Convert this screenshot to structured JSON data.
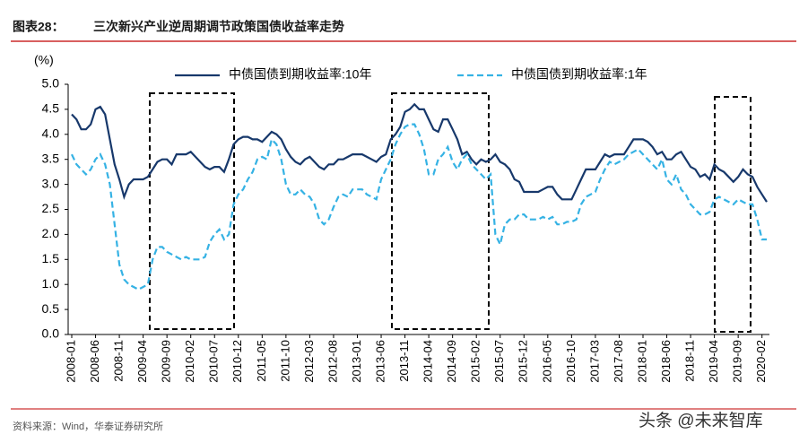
{
  "chart_data": {
    "type": "line",
    "figure_number": "图表28：",
    "title": "三次新兴产业逆周期调节政策国债收益率走势",
    "y_label": "(%)",
    "source": "资料来源：Wind，华泰证券研究所",
    "watermark": "头条 @未来智库",
    "categories": [
      "2008-01",
      null,
      null,
      null,
      null,
      "2008-06",
      null,
      null,
      null,
      null,
      "2008-11",
      null,
      null,
      null,
      null,
      "2009-04",
      null,
      null,
      null,
      null,
      "2009-09",
      null,
      null,
      null,
      null,
      "2010-02",
      null,
      null,
      null,
      null,
      "2010-07",
      null,
      null,
      null,
      null,
      "2010-12",
      null,
      null,
      null,
      null,
      "2011-05",
      null,
      null,
      null,
      null,
      "2011-10",
      null,
      null,
      null,
      null,
      "2012-03",
      null,
      null,
      null,
      null,
      "2012-08",
      null,
      null,
      null,
      null,
      "2013-01",
      null,
      null,
      null,
      null,
      "2013-06",
      null,
      null,
      null,
      null,
      "2013-11",
      null,
      null,
      null,
      null,
      "2014-04",
      null,
      null,
      null,
      null,
      "2014-09",
      null,
      null,
      null,
      null,
      "2015-02",
      null,
      null,
      null,
      null,
      "2015-07",
      null,
      null,
      null,
      null,
      "2015-12",
      null,
      null,
      null,
      null,
      "2016-05",
      null,
      null,
      null,
      null,
      "2016-10",
      null,
      null,
      null,
      null,
      "2017-03",
      null,
      null,
      null,
      null,
      "2017-08",
      null,
      null,
      null,
      null,
      "2018-01",
      null,
      null,
      null,
      null,
      "2018-06",
      null,
      null,
      null,
      null,
      "2018-11",
      null,
      null,
      null,
      null,
      "2019-04",
      null,
      null,
      null,
      null,
      "2019-09",
      null,
      null,
      null,
      null,
      "2020-02",
      null
    ],
    "series": [
      {
        "name": "中债国债到期收益率:10年",
        "color": "#17386b",
        "dash": false,
        "values": [
          4.4,
          4.3,
          4.1,
          4.1,
          4.2,
          4.5,
          4.55,
          4.4,
          3.9,
          3.4,
          3.1,
          2.75,
          3.0,
          3.1,
          3.1,
          3.1,
          3.15,
          3.3,
          3.45,
          3.5,
          3.5,
          3.4,
          3.6,
          3.6,
          3.6,
          3.65,
          3.55,
          3.45,
          3.35,
          3.3,
          3.35,
          3.35,
          3.25,
          3.5,
          3.8,
          3.9,
          3.95,
          3.95,
          3.9,
          3.9,
          3.85,
          3.95,
          4.05,
          4.0,
          3.9,
          3.7,
          3.55,
          3.45,
          3.4,
          3.5,
          3.55,
          3.45,
          3.35,
          3.3,
          3.4,
          3.4,
          3.5,
          3.5,
          3.55,
          3.6,
          3.6,
          3.6,
          3.55,
          3.5,
          3.45,
          3.55,
          3.6,
          3.9,
          4.0,
          4.15,
          4.45,
          4.5,
          4.6,
          4.5,
          4.5,
          4.3,
          4.1,
          4.05,
          4.3,
          4.3,
          4.1,
          3.9,
          3.6,
          3.65,
          3.5,
          3.4,
          3.5,
          3.45,
          3.5,
          3.6,
          3.45,
          3.4,
          3.3,
          3.1,
          3.05,
          2.85,
          2.85,
          2.85,
          2.85,
          2.9,
          2.95,
          2.95,
          2.8,
          2.7,
          2.7,
          2.7,
          2.9,
          3.1,
          3.3,
          3.3,
          3.3,
          3.45,
          3.6,
          3.55,
          3.6,
          3.6,
          3.6,
          3.75,
          3.9,
          3.9,
          3.9,
          3.85,
          3.75,
          3.6,
          3.65,
          3.5,
          3.5,
          3.6,
          3.65,
          3.5,
          3.35,
          3.3,
          3.15,
          3.2,
          3.1,
          3.4,
          3.3,
          3.25,
          3.15,
          3.05,
          3.15,
          3.3,
          3.2,
          3.15,
          2.95,
          2.8,
          2.65
        ]
      },
      {
        "name": "中债国债到期收益率:1年",
        "color": "#35b2e4",
        "dash": true,
        "values": [
          3.6,
          3.4,
          3.3,
          3.2,
          3.3,
          3.5,
          3.6,
          3.4,
          3.0,
          2.2,
          1.4,
          1.1,
          1.0,
          0.95,
          0.9,
          0.95,
          1.0,
          1.5,
          1.75,
          1.75,
          1.65,
          1.6,
          1.55,
          1.5,
          1.55,
          1.5,
          1.5,
          1.5,
          1.55,
          1.85,
          2.0,
          2.1,
          1.9,
          2.0,
          2.6,
          2.8,
          2.9,
          3.1,
          3.25,
          3.5,
          3.55,
          3.5,
          3.9,
          3.8,
          3.5,
          3.0,
          2.8,
          2.8,
          2.9,
          2.8,
          2.75,
          2.6,
          2.3,
          2.2,
          2.3,
          2.55,
          2.75,
          2.8,
          2.75,
          2.9,
          2.9,
          2.9,
          2.8,
          2.75,
          2.7,
          3.1,
          3.3,
          3.5,
          3.8,
          4.0,
          4.15,
          4.2,
          4.2,
          4.0,
          3.7,
          3.2,
          3.2,
          3.5,
          3.6,
          3.75,
          3.45,
          3.3,
          3.5,
          3.6,
          3.4,
          3.3,
          3.2,
          3.1,
          3.2,
          2.0,
          1.8,
          2.2,
          2.3,
          2.3,
          2.4,
          2.4,
          2.3,
          2.3,
          2.3,
          2.35,
          2.3,
          2.35,
          2.2,
          2.2,
          2.25,
          2.25,
          2.3,
          2.6,
          2.75,
          2.8,
          2.85,
          3.1,
          3.3,
          3.45,
          3.4,
          3.45,
          3.5,
          3.6,
          3.65,
          3.7,
          3.6,
          3.5,
          3.4,
          3.3,
          3.5,
          3.1,
          3.0,
          3.2,
          2.9,
          2.8,
          2.6,
          2.5,
          2.4,
          2.4,
          2.45,
          2.7,
          2.75,
          2.7,
          2.65,
          2.6,
          2.7,
          2.65,
          2.6,
          2.6,
          2.3,
          1.9,
          1.9
        ]
      }
    ],
    "ylim": [
      0,
      5
    ],
    "yticks": [
      {
        "value": 0,
        "label": "0.0"
      },
      {
        "value": 0.5,
        "label": "0.5"
      },
      {
        "value": 1,
        "label": "1.0"
      },
      {
        "value": 1.5,
        "label": "1.5"
      },
      {
        "value": 2,
        "label": "2.0"
      },
      {
        "value": 2.5,
        "label": "2.5"
      },
      {
        "value": 3,
        "label": "3.0"
      },
      {
        "value": 3.5,
        "label": "3.5"
      },
      {
        "value": 4,
        "label": "4.0"
      },
      {
        "value": 4.5,
        "label": "4.5"
      },
      {
        "value": 5,
        "label": "5.0"
      }
    ],
    "grid": false
  }
}
